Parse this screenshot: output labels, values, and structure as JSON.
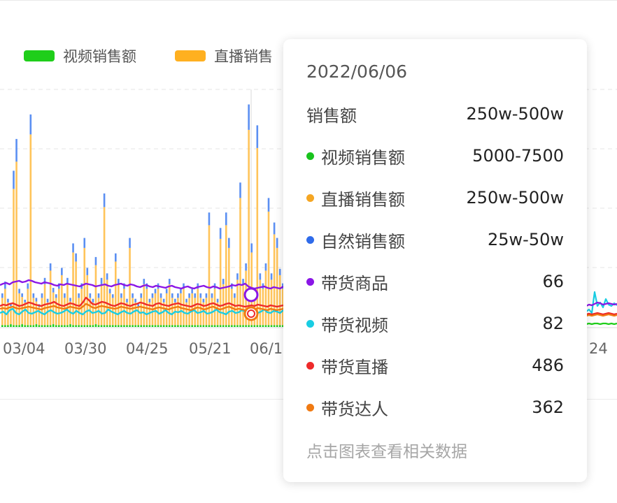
{
  "legend": [
    {
      "label": "视频销售额",
      "color": "#1fce1a"
    },
    {
      "label": "直播销售",
      "color": "#ffb020"
    }
  ],
  "tooltip": {
    "date": "2022/06/06",
    "header": {
      "label": "销售额",
      "value": "250w-500w"
    },
    "rows": [
      {
        "label": "视频销售额",
        "value": "5000-7500",
        "color": "#19c31d"
      },
      {
        "label": "直播销售额",
        "value": "250w-500w",
        "color": "#f5a623"
      },
      {
        "label": "自然销售额",
        "value": "25w-50w",
        "color": "#2f6bea"
      },
      {
        "label": "带货商品",
        "value": "66",
        "color": "#8a16e6"
      },
      {
        "label": "带货视频",
        "value": "82",
        "color": "#19cde3"
      },
      {
        "label": "带货直播",
        "value": "486",
        "color": "#ee2a2a"
      },
      {
        "label": "带货达人",
        "value": "362",
        "color": "#f07a12"
      }
    ],
    "hint": "点击图表查看相关数据"
  },
  "chart_data": {
    "type": "bar",
    "x_tick_labels": [
      "03/04",
      "03/30",
      "04/25",
      "05/21",
      "06/1",
      "24"
    ],
    "series": [
      {
        "name": "视频销售额",
        "color": "#1fce1a",
        "values": [
          2,
          2,
          2,
          3,
          2,
          2,
          2,
          3,
          2,
          2,
          2,
          2,
          3,
          2,
          2,
          2,
          2,
          2,
          3,
          2,
          2,
          2,
          2,
          2,
          3,
          2,
          2,
          2,
          2,
          2,
          2,
          2,
          2,
          3,
          2,
          2,
          2,
          2,
          2,
          2,
          2,
          2,
          2,
          2,
          2,
          2,
          2,
          2,
          2,
          2,
          2,
          2,
          2,
          2,
          2,
          2,
          2,
          2,
          2,
          2,
          2,
          2,
          2,
          2,
          2,
          2,
          2,
          2,
          2,
          2,
          2,
          2,
          2,
          2,
          2,
          2,
          2,
          2,
          2,
          2,
          2,
          2,
          2,
          2,
          2,
          2,
          2,
          2,
          2,
          2,
          2,
          2,
          2,
          2,
          2,
          2,
          2,
          2,
          2,
          2
        ]
      },
      {
        "name": "直播销售额",
        "color": "#ffc45a",
        "values": [
          30,
          40,
          25,
          20,
          150,
          180,
          35,
          30,
          25,
          40,
          210,
          30,
          25,
          20,
          30,
          45,
          25,
          60,
          35,
          30,
          40,
          55,
          30,
          45,
          25,
          80,
          70,
          30,
          40,
          85,
          55,
          30,
          25,
          65,
          30,
          45,
          130,
          50,
          35,
          30,
          70,
          45,
          30,
          40,
          25,
          85,
          30,
          25,
          20,
          30,
          45,
          40,
          25,
          30,
          35,
          40,
          30,
          25,
          35,
          45,
          30,
          25,
          30,
          35,
          40,
          25,
          30,
          35,
          30,
          40,
          30,
          25,
          30,
          110,
          30,
          40,
          25,
          95,
          45,
          110,
          85,
          40,
          30,
          50,
          140,
          45,
          60,
          215,
          80,
          30,
          195,
          50,
          40,
          60,
          125,
          50,
          100,
          85,
          55,
          40
        ]
      },
      {
        "name": "自然销售额",
        "color": "#5b8ff2",
        "values": [
          5,
          8,
          4,
          3,
          20,
          25,
          5,
          4,
          3,
          6,
          22,
          5,
          4,
          3,
          5,
          7,
          4,
          8,
          5,
          4,
          6,
          8,
          5,
          7,
          4,
          10,
          9,
          5,
          6,
          11,
          8,
          5,
          4,
          9,
          5,
          7,
          15,
          7,
          5,
          4,
          9,
          6,
          5,
          6,
          4,
          11,
          5,
          4,
          3,
          5,
          6,
          6,
          4,
          5,
          5,
          6,
          5,
          4,
          5,
          6,
          5,
          4,
          5,
          5,
          6,
          4,
          5,
          5,
          5,
          6,
          5,
          4,
          5,
          14,
          5,
          6,
          4,
          12,
          6,
          14,
          11,
          6,
          5,
          7,
          17,
          6,
          8,
          28,
          10,
          5,
          25,
          7,
          6,
          8,
          15,
          7,
          13,
          11,
          7,
          6
        ]
      }
    ],
    "lines": [
      {
        "name": "带货商品",
        "color": "#8a16e6",
        "values": [
          60,
          62,
          63,
          61,
          64,
          65,
          66,
          64,
          65,
          67,
          66,
          64,
          63,
          62,
          64,
          63,
          62,
          60,
          59,
          61,
          60,
          62,
          61,
          60,
          59,
          58,
          60,
          62,
          61,
          60,
          58,
          59,
          60,
          61,
          59,
          58,
          60,
          61,
          62,
          60,
          59,
          61,
          60,
          58,
          57,
          59,
          60,
          58,
          57,
          59,
          58,
          57,
          56,
          58,
          59,
          57,
          56,
          55,
          57,
          58,
          56,
          55,
          57,
          58,
          59,
          57,
          56,
          58,
          57,
          55,
          56,
          57,
          58,
          60,
          59,
          61,
          60,
          62,
          58,
          56,
          55,
          56,
          57,
          58,
          56,
          55,
          57,
          56,
          55,
          58
        ]
      },
      {
        "name": "带货视频",
        "color": "#19cde3",
        "values": [
          20,
          22,
          18,
          24,
          26,
          20,
          18,
          22,
          25,
          20,
          19,
          21,
          23,
          20,
          18,
          22,
          24,
          21,
          19,
          20,
          22,
          25,
          21,
          19,
          23,
          20,
          18,
          22,
          24,
          20,
          21,
          23,
          19,
          20,
          25,
          22,
          20,
          18,
          21,
          23,
          20,
          19,
          22,
          24,
          20,
          21,
          18,
          20,
          22,
          23,
          19,
          21,
          24,
          20,
          18,
          22,
          21,
          23,
          20,
          19,
          22,
          24,
          20,
          21,
          23,
          19,
          20,
          22,
          25,
          21,
          20,
          18,
          22,
          23,
          20,
          21,
          24,
          22,
          19,
          21,
          23,
          20,
          22,
          25,
          21,
          20,
          23,
          22,
          20,
          24
        ]
      },
      {
        "name": "带货直播",
        "color": "#ee2a2a",
        "values": [
          30,
          32,
          31,
          33,
          34,
          32,
          30,
          31,
          33,
          35,
          34,
          32,
          31,
          30,
          32,
          33,
          34,
          36,
          33,
          31,
          30,
          32,
          34,
          33,
          31,
          30,
          35,
          42,
          38,
          33,
          32,
          34,
          36,
          35,
          33,
          31,
          30,
          32,
          34,
          33,
          31,
          30,
          32,
          33,
          35,
          34,
          32,
          31,
          30,
          33,
          34,
          32,
          31,
          30,
          32,
          33,
          34,
          32,
          31,
          30,
          29,
          31,
          33,
          32,
          30,
          31,
          33,
          34,
          32,
          30,
          31,
          33,
          34,
          32,
          30,
          31,
          30,
          29,
          30,
          31,
          30,
          32,
          31,
          30,
          29,
          31,
          30,
          29,
          30,
          31
        ]
      },
      {
        "name": "带货达人",
        "color": "#f07a12",
        "values": [
          26,
          27,
          26,
          28,
          29,
          27,
          26,
          27,
          28,
          29,
          28,
          27,
          26,
          25,
          27,
          28,
          29,
          30,
          28,
          27,
          26,
          27,
          29,
          28,
          27,
          26,
          29,
          33,
          31,
          28,
          27,
          29,
          30,
          29,
          28,
          27,
          26,
          27,
          29,
          28,
          27,
          26,
          27,
          28,
          29,
          28,
          27,
          26,
          25,
          27,
          28,
          27,
          26,
          25,
          27,
          28,
          29,
          27,
          26,
          25,
          24,
          26,
          28,
          27,
          25,
          26,
          28,
          29,
          27,
          25,
          26,
          28,
          29,
          27,
          25,
          26,
          25,
          24,
          25,
          26,
          25,
          27,
          26,
          25,
          24,
          26,
          25,
          24,
          25,
          26
        ]
      }
    ],
    "right_lines": [
      {
        "name": "带货视频",
        "color": "#19cde3",
        "values": [
          22,
          25,
          20,
          50,
          30,
          35,
          28,
          40,
          32,
          30,
          34,
          31
        ]
      },
      {
        "name": "带货商品",
        "color": "#8a16e6",
        "values": [
          30,
          32,
          31,
          33,
          35,
          34,
          32,
          33,
          34,
          33,
          32,
          33
        ]
      },
      {
        "name": "带货直播",
        "color": "#ee2a2a",
        "values": [
          18,
          19,
          18,
          19,
          20,
          19,
          18,
          19,
          20,
          19,
          18,
          19
        ]
      },
      {
        "name": "带货达人",
        "color": "#f07a12",
        "values": [
          16,
          17,
          16,
          17,
          18,
          17,
          16,
          17,
          18,
          17,
          16,
          17
        ]
      },
      {
        "name": "视频销售额",
        "color": "#1fce1a",
        "values": [
          4,
          5,
          4,
          5,
          5,
          4,
          5,
          5,
          4,
          5,
          4,
          5
        ]
      }
    ],
    "grid": true
  }
}
